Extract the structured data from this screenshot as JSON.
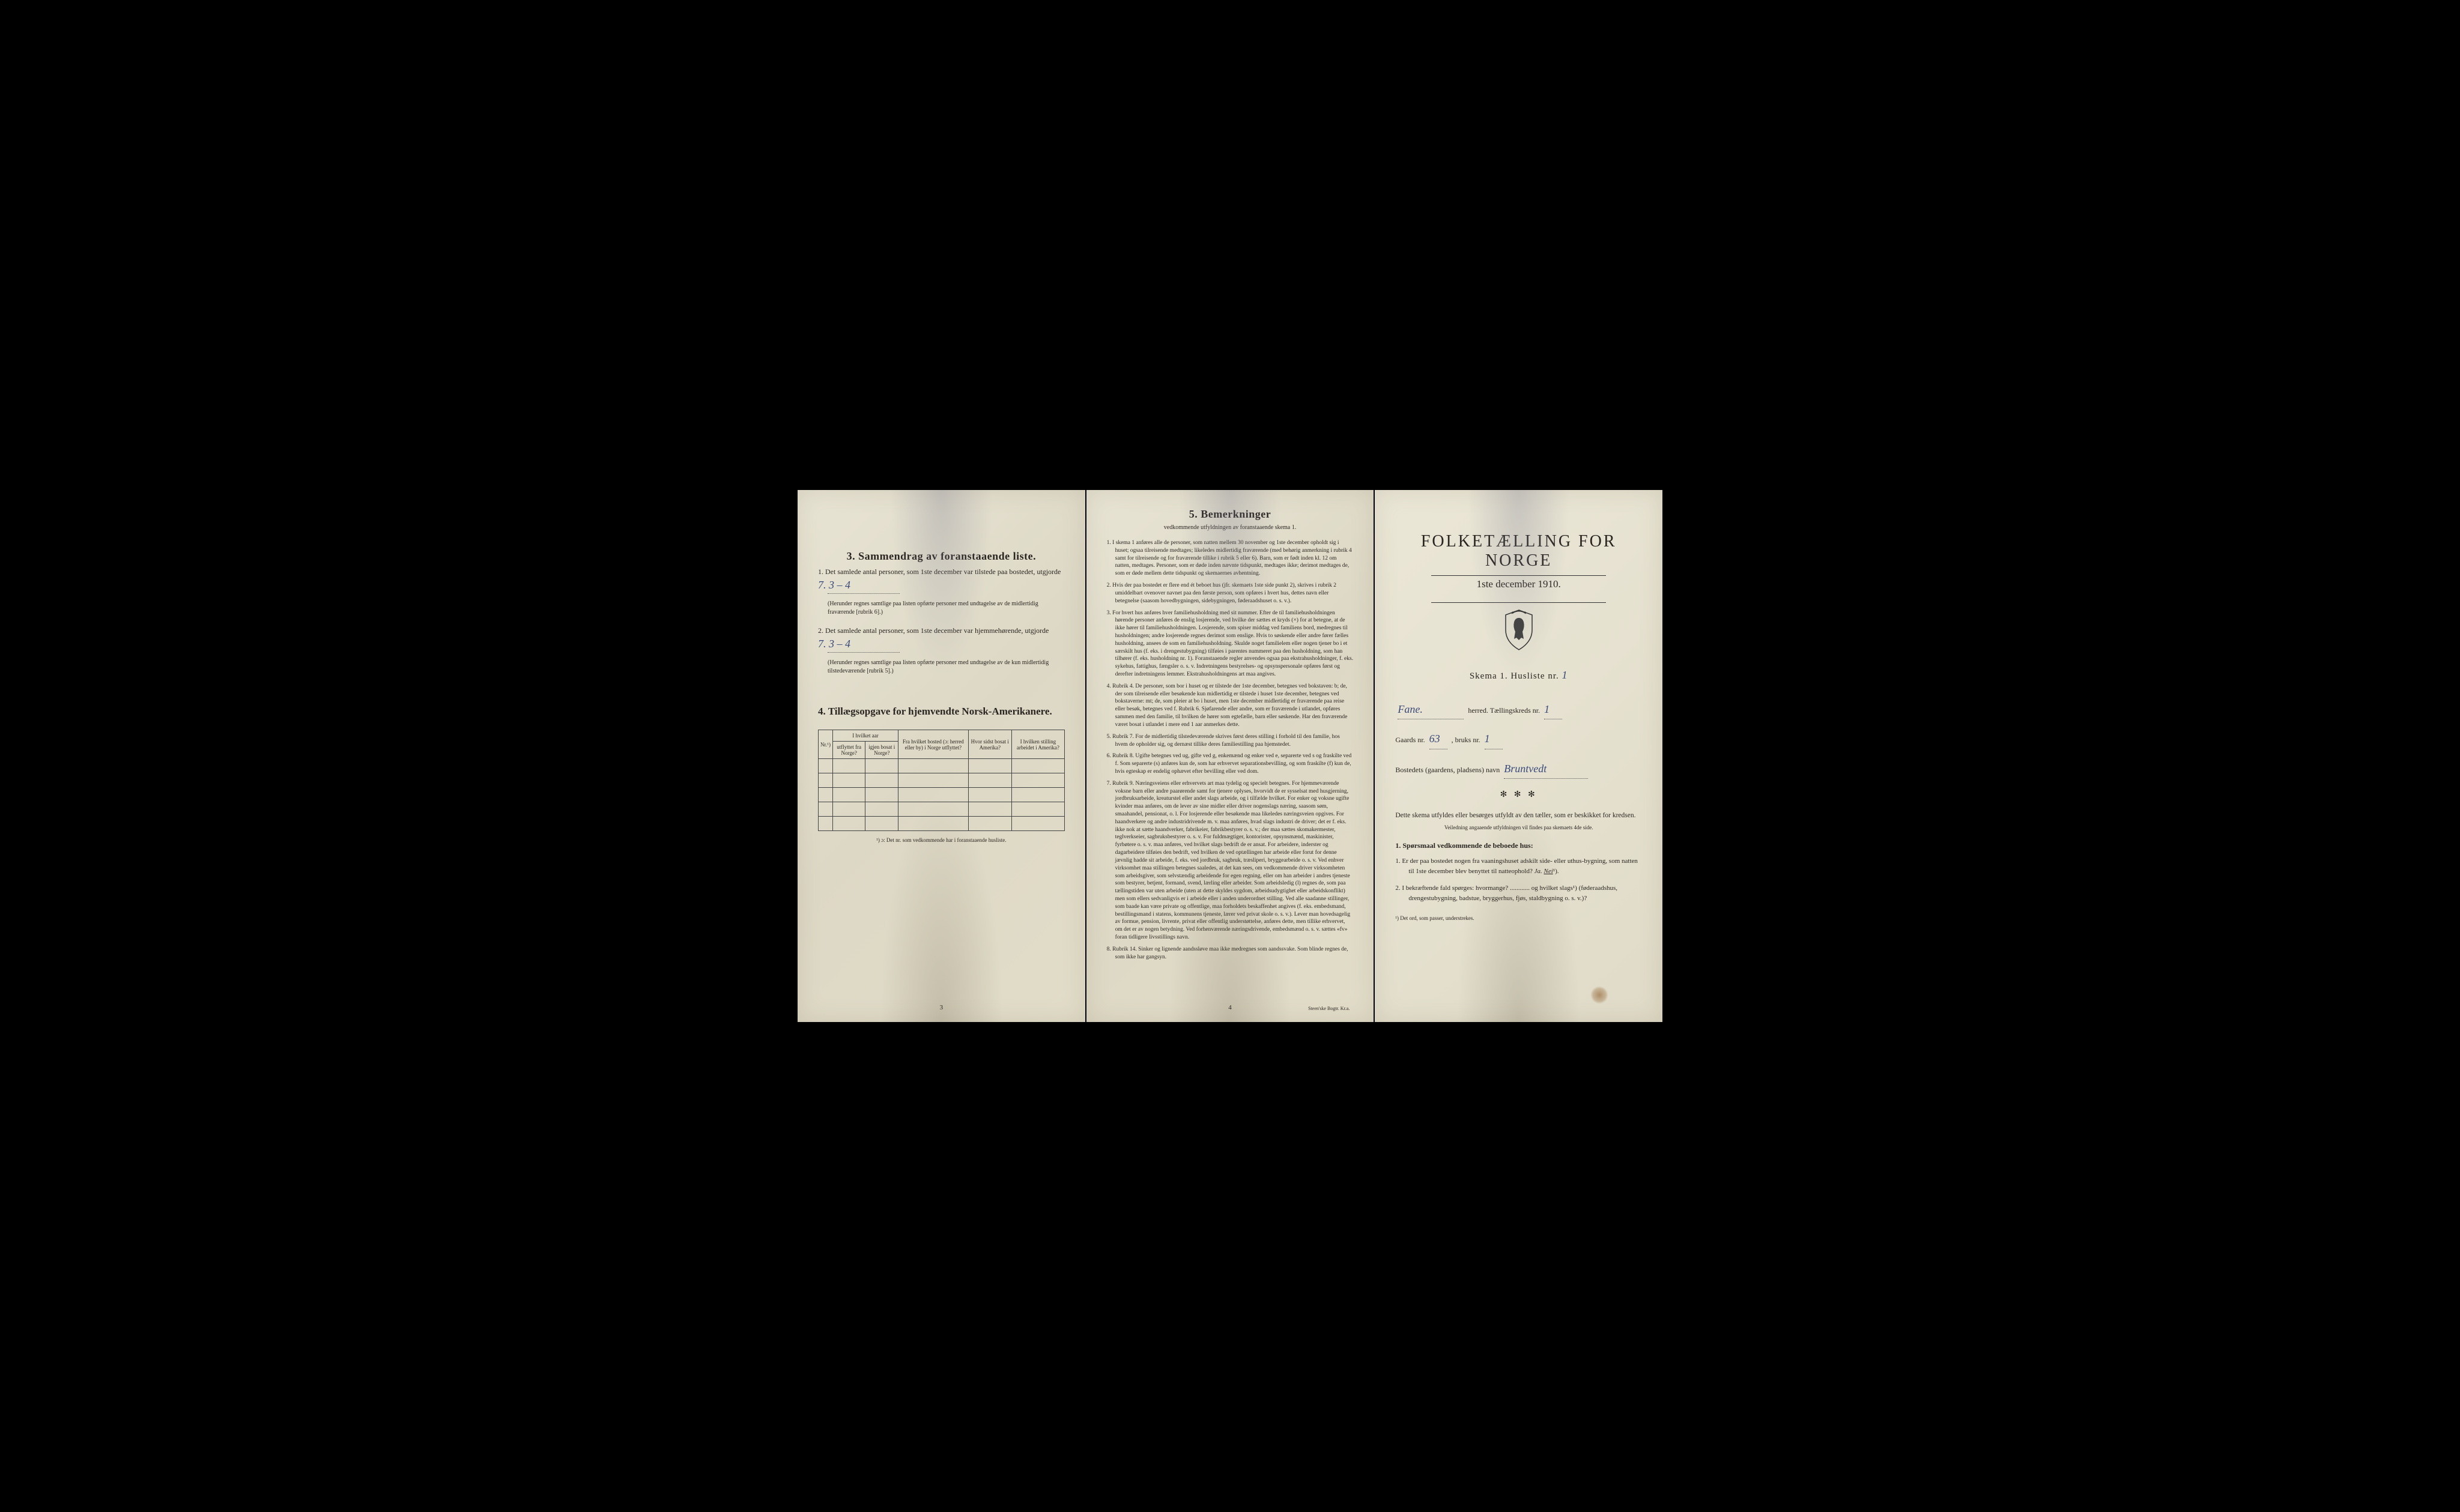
{
  "panel1": {
    "section3": {
      "heading": "3.   Sammendrag av foranstaaende liste.",
      "item1": "1.  Det samlede antal personer, som 1ste december var tilstede paa bostedet, utgjorde",
      "value1": "7.     3 – 4",
      "note1": "(Herunder regnes samtlige paa listen opførte personer med undtagelse av de midlertidig fraværende [rubrik 6].)",
      "item2": "2.  Det samlede antal personer, som 1ste december var hjemmehørende, utgjorde",
      "value2": "7.     3 – 4",
      "note2": "(Herunder regnes samtlige paa listen opførte personer med undtagelse av de kun midlertidig tilstedeværende [rubrik 5].)"
    },
    "section4": {
      "heading": "4.  Tillægsopgave for hjemvendte Norsk-Amerikanere.",
      "col_nr": "Nr.¹)",
      "col_group": "I hvilket aar",
      "col_utflyttet": "utflyttet fra Norge?",
      "col_igjen": "igjen bosat i Norge?",
      "col_bosted": "Fra hvilket bosted (ɔ: herred eller by) i Norge utflyttet?",
      "col_sidst": "Hvor sidst bosat i Amerika?",
      "col_stilling": "I hvilken stilling arbeidet i Amerika?",
      "footnote": "¹) ɔ: Det nr. som vedkommende har i foranstaaende husliste.",
      "empty_rows": 5
    },
    "page_num": "3"
  },
  "panel2": {
    "heading": "5.    Bemerkninger",
    "sub": "vedkommende utfyldningen av foranstaaende skema 1.",
    "items": [
      "1.  I skema 1 anføres alle de personer, som natten mellem 30 november og 1ste december opholdt sig i huset; ogsaa tilreisende medtages; likeledes midlertidig fraværende (med behørig anmerkning i rubrik 4 samt for tilreisende og for fraværende tillike i rubrik 5 eller 6). Barn, som er født inden kl. 12 om natten, medtages. Personer, som er døde inden nævnte tidspunkt, medtages ikke; derimot medtages de, som er døde mellem dette tidspunkt og skemaernes avhentning.",
      "2.  Hvis der paa bostedet er flere end ét beboet hus (jfr. skemaets 1ste side punkt 2), skrives i rubrik 2 umiddelbart ovenover navnet paa den første person, som opføres i hvert hus, dettes navn eller betegnelse (saasom hovedbygningen, sidebygningen, føderaadshuset o. s. v.).",
      "3.  For hvert hus anføres hver familiehusholdning med sit nummer. Efter de til familiehusholdningen hørende personer anføres de enslig losjerende, ved hvilke der sættes et kryds (×) for at betegne, at de ikke hører til familiehusholdningen. Losjerende, som spiser middag ved familiens bord, medregnes til husholdningen; andre losjerende regnes derimot som enslige. Hvis to søskende eller andre fører fælles husholdning, ansees de som en familiehusholdning. Skulde noget familielem eller nogen tjener bo i et særskilt hus (f. eks. i drengestubygning) tilføies i parentes nummeret paa den husholdning, som han tilhører (f. eks. husholdning nr. 1).\n   Foranstaaende regler anvendes ogsaa paa ekstrahusholdninger, f. eks. sykehus, fattighus, fængsler o. s. v. Indretningens bestyrelses- og opsynspersonale opføres først og derefter indretningens lemmer. Ekstrahusholdningens art maa angives.",
      "4.  Rubrik 4. De personer, som bor i huset og er tilstede der 1ste december, betegnes ved bokstaven: b; de, der som tilreisende eller besøkende kun midlertidig er tilstede i huset 1ste december, betegnes ved bokstaverne: mt; de, som pleier at bo i huset, men 1ste december midlertidig er fraværende paa reise eller besøk, betegnes ved f.\n   Rubrik 6. Sjøfarende eller andre, som er fraværende i utlandet, opføres sammen med den familie, til hvilken de hører som egtefælle, barn eller søskende.\n   Har den fraværende været bosat i utlandet i mere end 1 aar anmerkes dette.",
      "5.  Rubrik 7. For de midlertidig tilstedeværende skrives først deres stilling i forhold til den familie, hos hvem de opholder sig, og dernæst tillike deres familiestilling paa hjemstedet.",
      "6.  Rubrik 8. Ugifte betegnes ved ug, gifte ved g, enkemænd og enker ved e, separerte ved s og fraskilte ved f. Som separerte (s) anføres kun de, som har erhvervet separationsbevilling, og som fraskilte (f) kun de, hvis egteskap er endelig ophævet efter bevilling eller ved dom.",
      "7.  Rubrik 9. Næringsveiens eller erhvervets art maa tydelig og specielt betegnes.\n   For hjemmeværende voksne barn eller andre paarørende samt for tjenere oplyses, hvorvidt de er sysselsat med husgjerning, jordbruksarbeide, kreaturstel eller andet slags arbeide, og i tilfælde hvilket. For enker og voksne ugifte kvinder maa anføres, om de lever av sine midler eller driver nogenslags næring, saasom søm, smaahandel, pensionat, o. l.\n   For losjerende eller besøkende maa likeledes næringsveien opgives.\n   For haandverkere og andre industridrivende m. v. maa anføres, hvad slags industri de driver; det er f. eks. ikke nok at sætte haandverker, fabrikeier, fabrikbestyrer o. s. v.; der maa sættes skomakermester, teglverkseier, sagbruksbestyrer o. s. v.\n   For fuldmægtiger, kontorister, opsynsmænd, maskinister, fyrbøtere o. s. v. maa anføres, ved hvilket slags bedrift de er ansat.\n   For arbeidere, inderster og dagarbeidere tilføies den bedrift, ved hvilken de ved optællingen har arbeide eller forut for denne jævnlig hadde sit arbeide, f. eks. ved jordbruk, sagbruk, træsliperi, bryggearbeide o. s. v.\n   Ved enhver virksomhet maa stillingen betegnes saaledes, at det kan sees, om vedkommende driver virksomheten som arbeidsgiver, som selvstændig arbeidende for egen regning, eller om han arbeider i andres tjeneste som bestyrer, betjent, formand, svend, lærling eller arbeider.\n   Som arbeidsledig (l) regnes de, som paa tællingstiden var uten arbeide (uten at dette skyldes sygdom, arbeidsudygtighet eller arbeidskonflikt) men som ellers sedvanligvis er i arbeide eller i anden underordnet stilling.\n   Ved alle saadanne stillinger, som baade kan være private og offentlige, maa forholdets beskaffenhet angives (f. eks. embedsmand, bestillingsmand i statens, kommunens tjeneste, lærer ved privat skole o. s. v.).\n   Lever man hovedsagelig av formue, pension, livrente, privat eller offentlig understøttelse, anføres dette, men tillike erhvervet, om det er av nogen betydning.\n   Ved forhenværende næringsdrivende, embedsmænd o. s. v. sættes «fv» foran tidligere livsstillings navn.",
      "8.  Rubrik 14. Sinker og lignende aandssløve maa ikke medregnes som aandssvake.\n   Som blinde regnes de, som ikke har gangsyn."
    ],
    "page_num": "4",
    "printer": "Steen'ske Bogtr. Kr.a."
  },
  "panel3": {
    "title": "FOLKETÆLLING FOR NORGE",
    "date": "1ste december 1910.",
    "skema": "Skema 1.   Husliste nr.",
    "skema_value": "1",
    "herred_label": "herred.   Tællingskreds nr.",
    "herred_value": "Fane.",
    "kreds_value": "1",
    "gaards_label": "Gaards nr.",
    "gaards_value": "63",
    "bruks_label": ", bruks nr.",
    "bruks_value": "1",
    "bosted_label": "Bostedets (gaardens, pladsens) navn",
    "bosted_value": "Bruntvedt",
    "instructions": "Dette skema utfyldes eller besørges utfyldt av den tæller, som er beskikket for kredsen.",
    "instructions_small": "Veiledning angaaende utfyldningen vil findes paa skemaets 4de side.",
    "q_heading": "1.  Spørsmaal vedkommende de beboede hus:",
    "q1": "1.  Er der paa bostedet nogen fra vaaningshuset adskilt side- eller uthus-bygning, som natten til 1ste december blev benyttet til natteophold?",
    "q1_ja": "Ja.",
    "q1_nei": "Nei",
    "q1_sup": "¹).",
    "q2": "2.  I bekræftende fald spørges: hvormange? ............ og hvilket slags¹) (føderaadshus, drengestubygning, badstue, bryggerhus, fjøs, staldbygning o. s. v.)?",
    "foot": "¹) Det ord, som passer, understrekes."
  },
  "colors": {
    "paper": "#e5e0cd",
    "ink": "#2a2520",
    "handwriting": "#3a4a7a",
    "stain": "#8c5a28"
  }
}
